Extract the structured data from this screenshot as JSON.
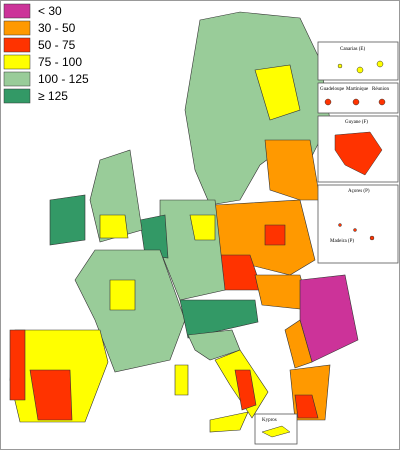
{
  "legend": {
    "items": [
      {
        "label": "< 30",
        "color": "#cc3399"
      },
      {
        "label": "30 - 50",
        "color": "#ff9900"
      },
      {
        "label": "50 - 75",
        "color": "#ff3300"
      },
      {
        "label": "75 - 100",
        "color": "#ffff00"
      },
      {
        "label": "100 - 125",
        "color": "#99cc99"
      },
      {
        "label": "≥ 125",
        "color": "#339966"
      }
    ]
  },
  "insets": [
    {
      "label": "Canarias (E)"
    },
    {
      "label": "Guadeloupe"
    },
    {
      "label": "Martinique"
    },
    {
      "label": "Réunion"
    },
    {
      "label": "Guyane (F)"
    },
    {
      "label": "Açores (P)"
    },
    {
      "label": "Madeira (P)"
    },
    {
      "label": "Kypros"
    }
  ]
}
